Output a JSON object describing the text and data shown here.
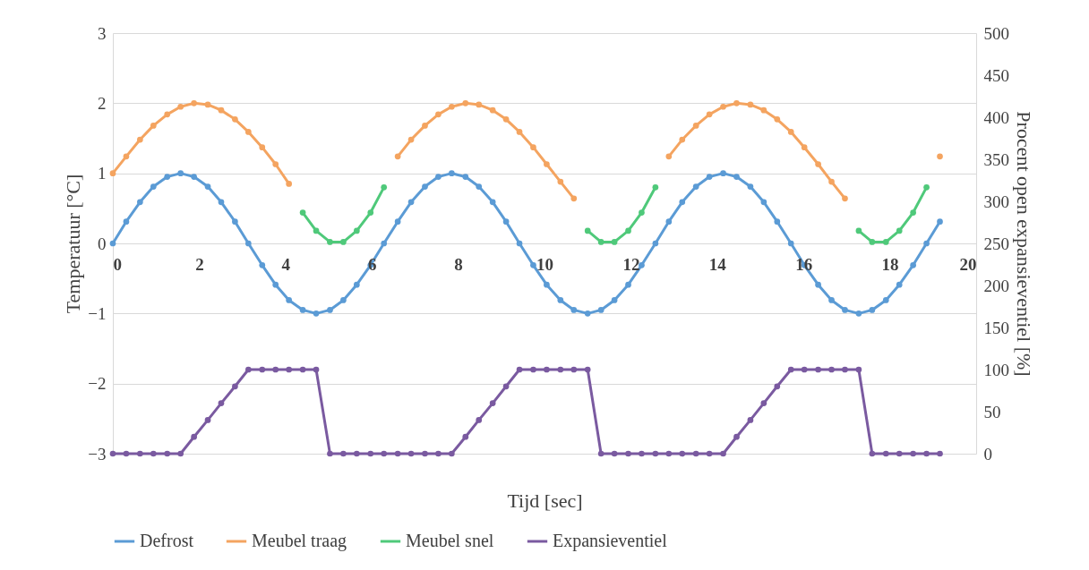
{
  "chart_data": {
    "type": "line",
    "xlabel": "Tijd [sec]",
    "ylabel": "Temperatuur [°C]",
    "y2label": "Procent  open expansieventiel [%]",
    "x": [
      0,
      0.31,
      0.63,
      0.94,
      1.26,
      1.57,
      1.88,
      2.2,
      2.51,
      2.83,
      3.14,
      3.46,
      3.77,
      4.08,
      4.4,
      4.71,
      5.03,
      5.34,
      5.65,
      5.97,
      6.28,
      6.6,
      6.91,
      7.23,
      7.54,
      7.85,
      8.17,
      8.48,
      8.8,
      9.11,
      9.42,
      9.74,
      10.05,
      10.37,
      10.68,
      11.0,
      11.31,
      11.62,
      11.94,
      12.25,
      12.57,
      12.88,
      13.19,
      13.51,
      13.82,
      14.14,
      14.45,
      14.77,
      15.08,
      15.39,
      15.71,
      16.02,
      16.34,
      16.65,
      16.96,
      17.28,
      17.59,
      17.91,
      18.22,
      18.54,
      18.85,
      19.16
    ],
    "series": [
      {
        "name": "Defrost",
        "color": "#5b9bd5",
        "values": [
          0,
          0.31,
          0.59,
          0.81,
          0.95,
          1,
          0.95,
          0.81,
          0.59,
          0.31,
          0,
          -0.31,
          -0.59,
          -0.81,
          -0.95,
          -1,
          -0.95,
          -0.81,
          -0.59,
          -0.31,
          0,
          0.31,
          0.59,
          0.81,
          0.95,
          1,
          0.95,
          0.81,
          0.59,
          0.31,
          0,
          -0.31,
          -0.59,
          -0.81,
          -0.95,
          -1,
          -0.95,
          -0.81,
          -0.59,
          -0.31,
          0,
          0.31,
          0.59,
          0.81,
          0.95,
          1,
          0.95,
          0.81,
          0.59,
          0.31,
          0,
          -0.31,
          -0.59,
          -0.81,
          -0.95,
          -1,
          -0.95,
          -0.81,
          -0.59,
          -0.31,
          0,
          0.31
        ]
      },
      {
        "name": "Meubel traag",
        "color": "#f4a460",
        "values": [
          1,
          1.24,
          1.48,
          1.68,
          1.84,
          1.95,
          2,
          1.98,
          1.9,
          1.77,
          1.59,
          1.37,
          1.13,
          0.85,
          null,
          null,
          null,
          null,
          null,
          null,
          null,
          1.24,
          1.48,
          1.68,
          1.84,
          1.95,
          2,
          1.98,
          1.9,
          1.77,
          1.59,
          1.37,
          1.13,
          0.88,
          0.64,
          null,
          null,
          null,
          null,
          null,
          null,
          1.24,
          1.48,
          1.68,
          1.84,
          1.95,
          2,
          1.98,
          1.9,
          1.77,
          1.59,
          1.37,
          1.13,
          0.88,
          0.64,
          null,
          null,
          null,
          null,
          null,
          null,
          1.24
        ]
      },
      {
        "name": "Meubel snel",
        "color": "#4fc97a",
        "values": [
          null,
          null,
          null,
          null,
          null,
          null,
          null,
          null,
          null,
          null,
          null,
          null,
          null,
          null,
          0.44,
          0.18,
          0.02,
          0.02,
          0.18,
          0.44,
          0.8,
          null,
          null,
          null,
          null,
          null,
          null,
          null,
          null,
          null,
          null,
          null,
          null,
          null,
          null,
          0.18,
          0.02,
          0.02,
          0.18,
          0.44,
          0.8,
          null,
          null,
          null,
          null,
          null,
          null,
          null,
          null,
          null,
          null,
          null,
          null,
          null,
          null,
          0.18,
          0.02,
          0.02,
          0.18,
          0.44,
          0.8,
          null
        ]
      },
      {
        "name": "Expansieventiel",
        "color": "#7a5aa0",
        "axis": "y2",
        "values": [
          0,
          0,
          0,
          0,
          0,
          0,
          20,
          40,
          60,
          80,
          100,
          100,
          100,
          100,
          100,
          100,
          0,
          0,
          0,
          0,
          0,
          0,
          0,
          0,
          0,
          0,
          20,
          40,
          60,
          80,
          100,
          100,
          100,
          100,
          100,
          100,
          0,
          0,
          0,
          0,
          0,
          0,
          0,
          0,
          0,
          0,
          20,
          40,
          60,
          80,
          100,
          100,
          100,
          100,
          100,
          100,
          0,
          0,
          0,
          0,
          0,
          0
        ]
      }
    ],
    "xlim": [
      0,
      20
    ],
    "xticks": [
      0,
      2,
      4,
      6,
      8,
      10,
      12,
      14,
      16,
      18,
      20
    ],
    "ylim": [
      -3,
      3
    ],
    "yticks": [
      -3,
      -2,
      -1,
      0,
      1,
      2,
      3
    ],
    "y2lim": [
      0,
      500
    ],
    "y2ticks": [
      0,
      50,
      100,
      150,
      200,
      250,
      300,
      350,
      400,
      450,
      500
    ],
    "grid": "y",
    "legend": "bottom",
    "marker": "circle",
    "line_style": "solid"
  }
}
